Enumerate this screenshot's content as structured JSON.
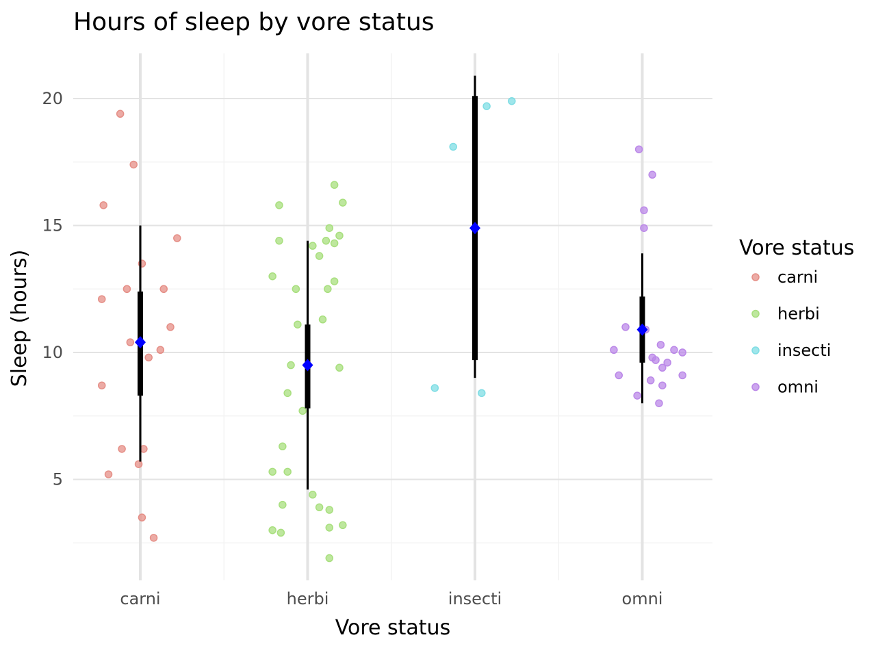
{
  "chart_data": {
    "type": "scatter",
    "title": "Hours of sleep by vore status",
    "xlabel": "Vore status",
    "ylabel": "Sleep (hours)",
    "categories": [
      "carni",
      "herbi",
      "insecti",
      "omni"
    ],
    "y_ticks": [
      5,
      10,
      15,
      20
    ],
    "y_tick_labels": [
      "5",
      "10",
      "15",
      "20"
    ],
    "ylim": [
      1.1,
      21.8
    ],
    "grid": true,
    "legend": {
      "title": "Vore status",
      "position": "right"
    },
    "colors": {
      "carni": "#e58f87",
      "herbi": "#a8df7e",
      "insecti": "#7fdde4",
      "omni": "#bb88e8",
      "summary": "#000000",
      "mean": "#0000ff"
    },
    "series": [
      {
        "name": "carni",
        "points": [
          [
            -0.12,
            19.4
          ],
          [
            -0.04,
            17.4
          ],
          [
            -0.22,
            15.8
          ],
          [
            0.22,
            14.5
          ],
          [
            0.01,
            13.5
          ],
          [
            -0.08,
            12.5
          ],
          [
            0.14,
            12.5
          ],
          [
            -0.23,
            12.1
          ],
          [
            0.18,
            11.0
          ],
          [
            -0.06,
            10.4
          ],
          [
            0.12,
            10.1
          ],
          [
            0.05,
            9.8
          ],
          [
            -0.23,
            8.7
          ],
          [
            0.02,
            6.2
          ],
          [
            -0.11,
            6.2
          ],
          [
            -0.01,
            5.6
          ],
          [
            -0.19,
            5.2
          ],
          [
            0.01,
            3.5
          ],
          [
            0.08,
            2.7
          ]
        ]
      },
      {
        "name": "herbi",
        "points": [
          [
            0.16,
            16.6
          ],
          [
            -0.17,
            15.8
          ],
          [
            0.21,
            15.9
          ],
          [
            0.13,
            14.9
          ],
          [
            -0.17,
            14.4
          ],
          [
            0.19,
            14.6
          ],
          [
            0.03,
            14.2
          ],
          [
            0.11,
            14.4
          ],
          [
            0.16,
            14.3
          ],
          [
            0.07,
            13.8
          ],
          [
            -0.21,
            13.0
          ],
          [
            -0.07,
            12.5
          ],
          [
            0.12,
            12.5
          ],
          [
            0.16,
            12.8
          ],
          [
            -0.06,
            11.1
          ],
          [
            0.09,
            11.3
          ],
          [
            -0.1,
            9.5
          ],
          [
            0.19,
            9.4
          ],
          [
            -0.12,
            8.4
          ],
          [
            -0.03,
            7.7
          ],
          [
            -0.15,
            6.3
          ],
          [
            -0.21,
            5.3
          ],
          [
            -0.12,
            5.3
          ],
          [
            0.03,
            4.4
          ],
          [
            -0.15,
            4.0
          ],
          [
            0.07,
            3.9
          ],
          [
            0.13,
            3.8
          ],
          [
            0.13,
            3.1
          ],
          [
            0.21,
            3.2
          ],
          [
            -0.21,
            3.0
          ],
          [
            -0.16,
            2.9
          ],
          [
            0.13,
            1.9
          ]
        ]
      },
      {
        "name": "insecti",
        "points": [
          [
            0.22,
            19.9
          ],
          [
            0.07,
            19.7
          ],
          [
            -0.13,
            18.1
          ],
          [
            -0.24,
            8.6
          ],
          [
            0.04,
            8.4
          ]
        ]
      },
      {
        "name": "omni",
        "points": [
          [
            -0.02,
            18.0
          ],
          [
            0.06,
            17.0
          ],
          [
            0.01,
            15.6
          ],
          [
            0.01,
            14.9
          ],
          [
            -0.1,
            11.0
          ],
          [
            0.02,
            10.9
          ],
          [
            -0.17,
            10.1
          ],
          [
            0.11,
            10.3
          ],
          [
            0.19,
            10.1
          ],
          [
            0.24,
            10.0
          ],
          [
            0.06,
            9.8
          ],
          [
            0.08,
            9.7
          ],
          [
            0.15,
            9.6
          ],
          [
            0.12,
            9.4
          ],
          [
            -0.14,
            9.1
          ],
          [
            0.24,
            9.1
          ],
          [
            0.05,
            8.9
          ],
          [
            0.12,
            8.7
          ],
          [
            -0.03,
            8.3
          ],
          [
            0.1,
            8.0
          ]
        ]
      }
    ],
    "summaries": [
      {
        "category": "carni",
        "mean": 10.4,
        "inner": [
          8.3,
          12.4
        ],
        "outer": [
          5.7,
          15.0
        ]
      },
      {
        "category": "herbi",
        "mean": 9.5,
        "inner": [
          7.8,
          11.1
        ],
        "outer": [
          4.6,
          14.4
        ]
      },
      {
        "category": "insecti",
        "mean": 14.9,
        "inner": [
          9.7,
          20.1
        ],
        "outer": [
          9.0,
          20.9
        ]
      },
      {
        "category": "omni",
        "mean": 10.9,
        "inner": [
          9.6,
          12.2
        ],
        "outer": [
          8.0,
          13.9
        ]
      }
    ]
  }
}
